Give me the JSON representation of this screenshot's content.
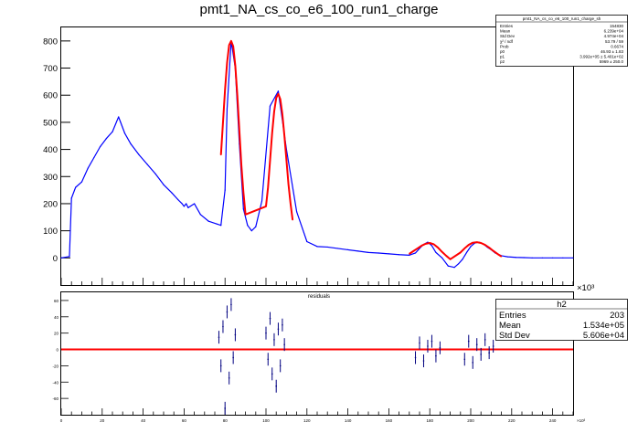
{
  "canvas_title": "pmt1_NA_cs_co_e6_100_run1_charge",
  "top_panel": {
    "stats": {
      "name": "pmt1_NA_cs_co_e6_100_run1_charge_sh",
      "rows": [
        {
          "label": "Entries",
          "value": "154830"
        },
        {
          "label": "Mean",
          "value": "6.239e+04"
        },
        {
          "label": "Std Dev",
          "value": "4.974e+04"
        },
        {
          "label": "χ² / ndf",
          "value": "53.79 / 59"
        },
        {
          "label": "Prob",
          "value": "0.6674"
        },
        {
          "label": "p0",
          "value": "46.93 ± 1.83"
        },
        {
          "label": "p1",
          "value": "3.992e+05 ± 5.401e+02"
        },
        {
          "label": "p2",
          "value": "5969 ± 250.0"
        }
      ]
    },
    "x_multiplier": "×10³"
  },
  "bottom_panel": {
    "title": "residuals",
    "stats": {
      "name": "h2",
      "rows": [
        {
          "label": "Entries",
          "value": "203"
        },
        {
          "label": "Mean",
          "value": "1.534e+05"
        },
        {
          "label": "Std Dev",
          "value": "5.606e+04"
        }
      ]
    },
    "x_multiplier": "×10³"
  },
  "chart_data": [
    {
      "type": "line",
      "title": "pmt1_NA_cs_co_e6_100_run1_charge",
      "xlim": [
        0,
        250
      ],
      "ylim": [
        -100,
        850
      ],
      "x_ticks": [],
      "y_ticks": [
        "0",
        "100",
        "200",
        "300",
        "400",
        "500",
        "600",
        "700",
        "800"
      ],
      "grid": false,
      "series": [
        {
          "color": "#0000ff",
          "x": [
            0,
            4,
            5,
            7,
            10,
            13,
            16,
            19,
            22,
            25,
            28,
            29,
            31,
            34,
            38,
            42,
            46,
            50,
            54,
            57,
            59,
            60,
            61,
            62,
            63,
            65,
            68,
            72,
            76,
            78,
            80,
            81,
            83,
            85,
            87,
            89,
            91,
            93,
            95,
            98,
            102,
            106,
            110,
            115,
            120,
            125,
            130,
            135,
            140,
            145,
            150,
            155,
            160,
            165,
            170,
            173,
            175,
            177,
            179,
            181,
            183,
            186,
            189,
            192,
            194,
            196,
            198,
            200,
            202,
            204,
            206,
            208,
            210,
            212,
            215,
            218,
            222,
            226,
            230,
            235,
            240,
            245,
            250
          ],
          "values": [
            0,
            5,
            220,
            260,
            280,
            330,
            370,
            410,
            440,
            465,
            520,
            500,
            460,
            420,
            380,
            345,
            310,
            270,
            240,
            215,
            200,
            190,
            200,
            185,
            190,
            200,
            160,
            135,
            125,
            120,
            250,
            550,
            800,
            700,
            420,
            180,
            120,
            100,
            115,
            210,
            560,
            615,
            400,
            170,
            60,
            42,
            40,
            35,
            30,
            25,
            20,
            18,
            15,
            12,
            10,
            18,
            35,
            50,
            58,
            45,
            20,
            0,
            -30,
            -35,
            -22,
            -5,
            20,
            42,
            55,
            58,
            52,
            40,
            30,
            18,
            8,
            4,
            2,
            1,
            0,
            0,
            0,
            0,
            0
          ]
        },
        {
          "name": "fit",
          "color": "#ff0000",
          "x": [
            78,
            79,
            80,
            81,
            82,
            83,
            84,
            85,
            86,
            87,
            88,
            89,
            90,
            100,
            101,
            102,
            103,
            104,
            105,
            106,
            107,
            108,
            109,
            110,
            111,
            112,
            113,
            170,
            172,
            174,
            176,
            178,
            180,
            182,
            184,
            186,
            188,
            190,
            195,
            197,
            199,
            201,
            203,
            205,
            207,
            209,
            211,
            213,
            215
          ],
          "values": [
            380,
            500,
            620,
            720,
            785,
            800,
            780,
            710,
            600,
            470,
            340,
            240,
            160,
            190,
            260,
            360,
            460,
            540,
            590,
            605,
            585,
            530,
            450,
            360,
            270,
            200,
            140,
            15,
            25,
            35,
            45,
            52,
            55,
            50,
            38,
            22,
            8,
            -5,
            20,
            35,
            48,
            56,
            58,
            55,
            48,
            38,
            26,
            15,
            5
          ]
        }
      ]
    },
    {
      "type": "scatter",
      "title": "residuals",
      "xlim": [
        0,
        250
      ],
      "ylim": [
        -80,
        70
      ],
      "x_ticks": [
        "0",
        "20",
        "40",
        "60",
        "80",
        "100",
        "120",
        "140",
        "160",
        "180",
        "200",
        "220",
        "240"
      ],
      "y_ticks": [
        "-60",
        "-40",
        "-20",
        "0",
        "20",
        "40",
        "60"
      ],
      "grid": false,
      "reference_line": {
        "color": "#ff0000",
        "y": 0
      },
      "series": [
        {
          "color": "#000080",
          "x": [
            77,
            78,
            79,
            80,
            81,
            82,
            83,
            84,
            85,
            100,
            101,
            102,
            103,
            104,
            105,
            106,
            107,
            108,
            109,
            173,
            175,
            177,
            179,
            181,
            183,
            185,
            197,
            199,
            201,
            203,
            205,
            207,
            209,
            211
          ],
          "values": [
            15,
            -20,
            28,
            -72,
            46,
            -35,
            55,
            -10,
            18,
            20,
            -12,
            38,
            -30,
            12,
            -45,
            25,
            -20,
            30,
            6,
            -10,
            8,
            -14,
            4,
            10,
            -8,
            2,
            -12,
            10,
            -16,
            6,
            -6,
            12,
            -4,
            4
          ]
        }
      ]
    }
  ]
}
